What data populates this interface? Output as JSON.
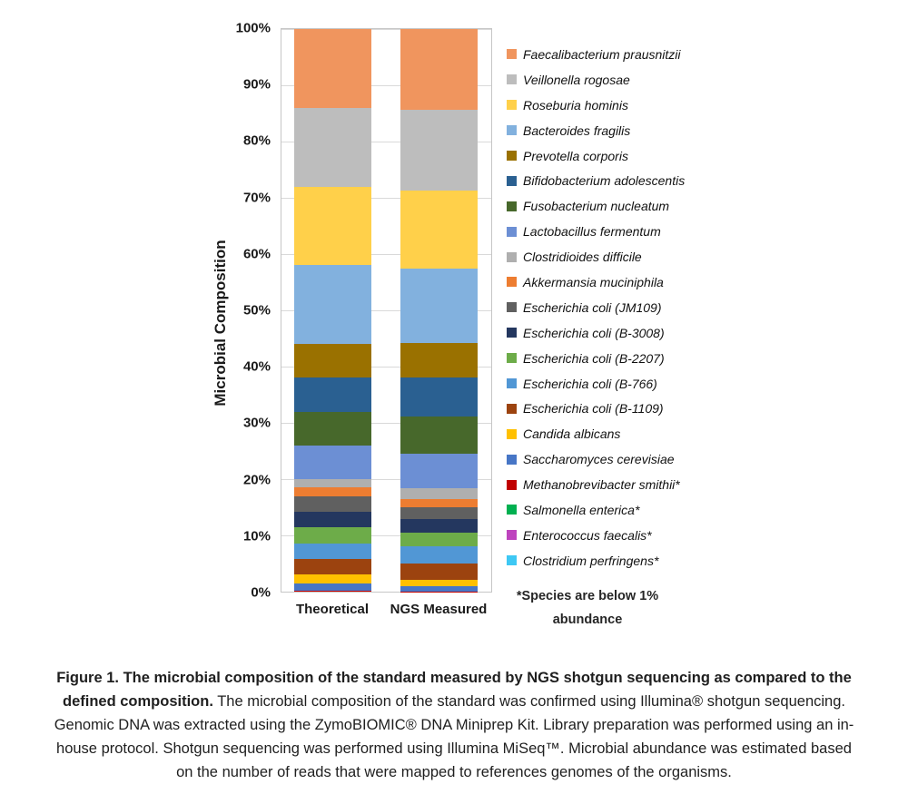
{
  "chart_data": {
    "type": "bar",
    "subtype": "stacked-100-percent",
    "title": "",
    "xlabel": "",
    "ylabel": "Microbial Composition",
    "ylim": [
      0,
      100
    ],
    "grid": true,
    "legend_position": "right",
    "categories": [
      "Theoretical",
      "NGS Measured"
    ],
    "y_ticks": [
      "0%",
      "10%",
      "20%",
      "30%",
      "40%",
      "50%",
      "60%",
      "70%",
      "80%",
      "90%",
      "100%"
    ],
    "series": [
      {
        "name": "Faecalibacterium prausnitzii",
        "color": "#F0955E",
        "values": [
          14,
          14.3
        ]
      },
      {
        "name": "Veillonella rogosae",
        "color": "#BDBDBD",
        "values": [
          14,
          14.5
        ]
      },
      {
        "name": "Roseburia hominis",
        "color": "#FFD04A",
        "values": [
          14,
          13.8
        ]
      },
      {
        "name": "Bacteroides fragilis",
        "color": "#82B1DE",
        "values": [
          14,
          13.2
        ]
      },
      {
        "name": "Prevotella corporis",
        "color": "#9A7100",
        "values": [
          6,
          6.1
        ]
      },
      {
        "name": "Bifidobacterium adolescentis",
        "color": "#2A6091",
        "values": [
          6,
          7.0
        ]
      },
      {
        "name": "Fusobacterium nucleatum",
        "color": "#47682B",
        "values": [
          6,
          6.6
        ]
      },
      {
        "name": "Lactobacillus fermentum",
        "color": "#6C8FD4",
        "values": [
          6,
          6.2
        ]
      },
      {
        "name": "Clostridioides difficile",
        "color": "#AFAFAF",
        "values": [
          1.5,
          1.9
        ]
      },
      {
        "name": "Akkermansia muciniphila",
        "color": "#ED7D31",
        "values": [
          1.5,
          1.5
        ]
      },
      {
        "name": "Escherichia coli (JM109)",
        "color": "#606060",
        "values": [
          2.8,
          2.0
        ]
      },
      {
        "name": "Escherichia coli (B-3008)",
        "color": "#24375F",
        "values": [
          2.8,
          2.4
        ]
      },
      {
        "name": "Escherichia coli (B-2207)",
        "color": "#6DAC49",
        "values": [
          2.8,
          2.5
        ]
      },
      {
        "name": "Escherichia coli (B-766)",
        "color": "#5197D5",
        "values": [
          2.8,
          3.1
        ]
      },
      {
        "name": "Escherichia coli (B-1109)",
        "color": "#9C430F",
        "values": [
          2.8,
          2.8
        ]
      },
      {
        "name": "Candida albicans",
        "color": "#FFC000",
        "values": [
          1.5,
          1.2
        ]
      },
      {
        "name": "Saccharomyces cerevisiae",
        "color": "#4776C6",
        "values": [
          1.4,
          0.9
        ]
      },
      {
        "name": "Methanobrevibacter smithii*",
        "color": "#C00000",
        "values": [
          0.1,
          0.05
        ]
      },
      {
        "name": "Salmonella enterica*",
        "color": "#00B050",
        "values": [
          0.01,
          0.01
        ]
      },
      {
        "name": "Enterococcus faecalis*",
        "color": "#BE44BE",
        "values": [
          0.001,
          0.001
        ]
      },
      {
        "name": "Clostridium perfringens*",
        "color": "#3EC8F4",
        "values": [
          0.0001,
          0.0001
        ]
      }
    ],
    "footnote": "*Species are below 1% abundance"
  },
  "legend": {
    "footnote_line1": "*Species are below 1%",
    "footnote_line2": "abundance"
  },
  "caption": {
    "bold": "Figure 1. The microbial composition of the standard measured by NGS shotgun sequencing as compared to the defined composition.",
    "regular": " The microbial composition of the standard was confirmed using Illumina® shotgun sequencing. Genomic DNA was extracted using the ZymoBIOMIC® DNA Miniprep Kit. Library preparation was performed using an in-house protocol. Shotgun sequencing was performed using Illumina MiSeq™. Microbial abundance was estimated based on the number of reads that were mapped to references genomes of the organisms."
  }
}
